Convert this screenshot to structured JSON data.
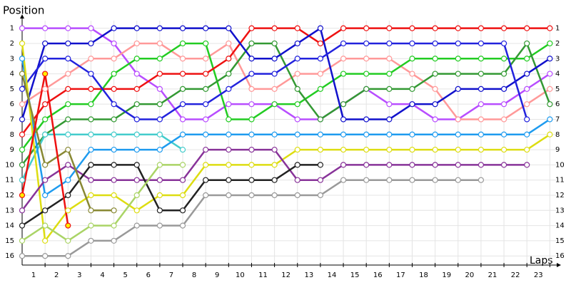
{
  "chart_data": {
    "type": "line",
    "title": "Position",
    "x_label": "Laps",
    "x": [
      0,
      1,
      2,
      3,
      4,
      5,
      6,
      7,
      8,
      9,
      10,
      11,
      12,
      13,
      14,
      15,
      16,
      17,
      18,
      19,
      20,
      21,
      22,
      23
    ],
    "xlim": [
      0,
      23.3
    ],
    "xticks": [
      1,
      2,
      3,
      4,
      5,
      6,
      7,
      8,
      9,
      10,
      11,
      12,
      13,
      14,
      15,
      16,
      17,
      18,
      19,
      20,
      21,
      22,
      23
    ],
    "ylim": [
      16.6,
      0.5
    ],
    "yticks": [
      1,
      2,
      3,
      4,
      5,
      6,
      7,
      8,
      9,
      10,
      11,
      12,
      13,
      14,
      15,
      16
    ],
    "grid": true,
    "series": [
      {
        "color": "#b84dff",
        "values": [
          1,
          1,
          1,
          1,
          2,
          4,
          5,
          7,
          7,
          6,
          6,
          6,
          7,
          7,
          6,
          5,
          6,
          6,
          7,
          7,
          6,
          6,
          5,
          4
        ]
      },
      {
        "color": "#ff9999",
        "values": [
          6,
          5,
          4,
          3,
          3,
          2,
          2,
          3,
          3,
          2,
          5,
          5,
          4,
          4,
          3,
          3,
          3,
          4,
          5,
          7,
          7,
          7,
          6,
          5
        ]
      },
      {
        "color": "#22cc22",
        "values": [
          9,
          7,
          6,
          6,
          4,
          3,
          3,
          2,
          2,
          7,
          7,
          6,
          6,
          5,
          4,
          4,
          4,
          3,
          3,
          3,
          3,
          3,
          3,
          2
        ]
      },
      {
        "color": "#339933",
        "values": [
          10,
          8,
          7,
          7,
          7,
          6,
          6,
          5,
          5,
          4,
          2,
          2,
          5,
          7,
          6,
          5,
          5,
          5,
          4,
          4,
          4,
          4,
          2,
          6
        ]
      },
      {
        "color": "#ee1111",
        "values": [
          8,
          6,
          5,
          5,
          5,
          5,
          4,
          4,
          4,
          3,
          1,
          1,
          1,
          2,
          1,
          1,
          1,
          1,
          1,
          1,
          1,
          1,
          1,
          1
        ]
      },
      {
        "color": "#1111cc",
        "values": [
          7,
          2,
          2,
          2,
          1,
          1,
          1,
          1,
          1,
          1,
          3,
          3,
          2,
          1,
          7,
          7,
          7,
          6,
          6,
          5,
          5,
          5,
          4,
          3
        ]
      },
      {
        "color": "#2222dd",
        "values": [
          5,
          3,
          3,
          4,
          6,
          7,
          7,
          6,
          6,
          5,
          4,
          4,
          3,
          3,
          2,
          2,
          2,
          2,
          2,
          2,
          2,
          2,
          7,
          null
        ]
      },
      {
        "color": "#44cccc",
        "values": [
          11,
          8,
          8,
          8,
          8,
          8,
          8,
          9,
          null,
          null,
          null,
          null,
          null,
          null,
          null,
          null,
          null,
          null,
          null,
          null,
          null,
          null,
          null,
          null
        ]
      },
      {
        "color": "#1e9bef",
        "values": [
          3,
          12,
          11,
          9,
          9,
          9,
          9,
          8,
          8,
          8,
          8,
          8,
          8,
          8,
          8,
          8,
          8,
          8,
          8,
          8,
          8,
          8,
          8,
          7
        ]
      },
      {
        "color": "#dddd11",
        "values": [
          2,
          15,
          13,
          12,
          12,
          13,
          12,
          12,
          10,
          10,
          10,
          10,
          9,
          9,
          9,
          9,
          9,
          9,
          9,
          9,
          9,
          9,
          9,
          8
        ]
      },
      {
        "color": "#883399",
        "values": [
          13,
          11,
          10,
          11,
          11,
          11,
          11,
          11,
          9,
          9,
          9,
          9,
          11,
          11,
          10,
          10,
          10,
          10,
          10,
          10,
          10,
          10,
          10,
          null
        ]
      },
      {
        "color": "#222222",
        "values": [
          14,
          13,
          12,
          10,
          10,
          10,
          13,
          13,
          11,
          11,
          11,
          11,
          10,
          10,
          null,
          null,
          null,
          null,
          null,
          null,
          null,
          null,
          null,
          null
        ]
      },
      {
        "color": "#999999",
        "values": [
          16,
          16,
          16,
          15,
          15,
          14,
          14,
          14,
          12,
          12,
          12,
          12,
          12,
          12,
          11,
          11,
          11,
          11,
          11,
          11,
          11,
          null,
          null,
          null
        ]
      },
      {
        "color": "#888833",
        "values": [
          4,
          10,
          9,
          13,
          13,
          null,
          null,
          null,
          null,
          null,
          null,
          null,
          null,
          null,
          null,
          null,
          null,
          null,
          null,
          null,
          null,
          null,
          null,
          null
        ]
      },
      {
        "color": "#aad466",
        "values": [
          15,
          14,
          15,
          14,
          14,
          12,
          10,
          10,
          null,
          null,
          null,
          null,
          null,
          null,
          null,
          null,
          null,
          null,
          null,
          null,
          null,
          null,
          null,
          null
        ]
      },
      {
        "color": "#ee1111",
        "marker_fill": "#ffee00",
        "values": [
          12,
          4,
          14,
          null,
          null,
          null,
          null,
          null,
          null,
          null,
          null,
          null,
          null,
          null,
          null,
          null,
          null,
          null,
          null,
          null,
          null,
          null,
          null,
          null
        ]
      }
    ]
  }
}
